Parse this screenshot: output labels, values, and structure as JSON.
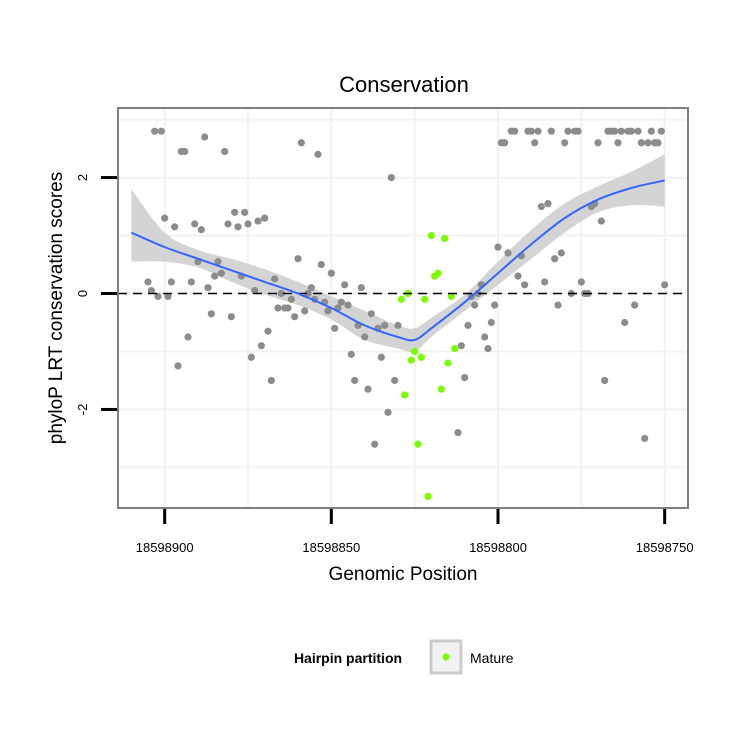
{
  "chart_data": {
    "type": "scatter",
    "title": "Conservation",
    "xlabel": "Genomic Position",
    "ylabel": "phyloP LRT conservation scores",
    "x_reversed": true,
    "xlim": [
      18598914,
      18598743
    ],
    "ylim": [
      -3.7,
      3.2
    ],
    "x_ticks": [
      18598900,
      18598850,
      18598800,
      18598750
    ],
    "x_tick_labels": [
      "18598900",
      "18598850",
      "18598800",
      "18598750"
    ],
    "y_ticks": [
      -2,
      0,
      2
    ],
    "y_tick_labels": [
      "-2",
      "0",
      "2"
    ],
    "grid": true,
    "reference_line_y": 0,
    "legend": {
      "title": "Hairpin partition",
      "entries": [
        {
          "label": "Mature",
          "color": "#7cfc00"
        }
      ],
      "position": "bottom"
    },
    "colors": {
      "gray_points": "#8c8c8c",
      "mature_points": "#7cfc00",
      "smooth_line": "#3366ff",
      "ribbon": "#cccccc",
      "panel_border": "#7f7f7f",
      "grid": "#f2f2f2"
    },
    "series": [
      {
        "points": [
          [
            18598905,
            0.2
          ],
          [
            18598904,
            0.05
          ],
          [
            18598903,
            2.8
          ],
          [
            18598902,
            -0.05
          ],
          [
            18598901,
            2.8
          ],
          [
            18598900,
            1.3
          ],
          [
            18598899,
            -0.05
          ],
          [
            18598898,
            0.2
          ],
          [
            18598897,
            1.15
          ],
          [
            18598896,
            -1.25
          ],
          [
            18598895,
            2.45
          ],
          [
            18598894,
            2.45
          ],
          [
            18598893,
            -0.75
          ],
          [
            18598892,
            0.2
          ],
          [
            18598891,
            1.2
          ],
          [
            18598890,
            0.55
          ],
          [
            18598889,
            1.1
          ],
          [
            18598888,
            2.7
          ],
          [
            18598887,
            0.1
          ],
          [
            18598886,
            -0.35
          ],
          [
            18598885,
            0.3
          ],
          [
            18598884,
            0.55
          ],
          [
            18598883,
            0.35
          ],
          [
            18598882,
            2.45
          ],
          [
            18598881,
            1.2
          ],
          [
            18598880,
            -0.4
          ],
          [
            18598879,
            1.4
          ],
          [
            18598878,
            1.15
          ],
          [
            18598877,
            0.3
          ],
          [
            18598876,
            1.4
          ],
          [
            18598875,
            1.2
          ],
          [
            18598874,
            -1.1
          ],
          [
            18598873,
            0.05
          ],
          [
            18598872,
            1.25
          ],
          [
            18598871,
            -0.9
          ],
          [
            18598870,
            1.3
          ],
          [
            18598869,
            -0.65
          ],
          [
            18598868,
            -1.5
          ],
          [
            18598867,
            0.25
          ],
          [
            18598866,
            -0.25
          ],
          [
            18598865,
            0.0
          ],
          [
            18598864,
            -0.25
          ],
          [
            18598863,
            -0.25
          ],
          [
            18598862,
            -0.1
          ],
          [
            18598861,
            -0.4
          ],
          [
            18598860,
            0.6
          ],
          [
            18598859,
            2.6
          ],
          [
            18598858,
            -0.3
          ],
          [
            18598857,
            0.0
          ],
          [
            18598856,
            0.1
          ],
          [
            18598855,
            -0.1
          ],
          [
            18598854,
            2.4
          ],
          [
            18598853,
            0.5
          ],
          [
            18598852,
            -0.15
          ],
          [
            18598851,
            -0.3
          ],
          [
            18598850,
            0.35
          ],
          [
            18598849,
            -0.6
          ],
          [
            18598848,
            -0.25
          ],
          [
            18598847,
            -0.15
          ],
          [
            18598846,
            0.15
          ],
          [
            18598845,
            -0.2
          ],
          [
            18598844,
            -1.05
          ],
          [
            18598843,
            -1.5
          ],
          [
            18598842,
            -0.55
          ],
          [
            18598841,
            0.1
          ],
          [
            18598840,
            -0.75
          ],
          [
            18598839,
            -1.65
          ],
          [
            18598838,
            -0.35
          ],
          [
            18598837,
            -2.6
          ],
          [
            18598836,
            -0.6
          ],
          [
            18598835,
            -1.1
          ],
          [
            18598834,
            -0.55
          ],
          [
            18598833,
            -2.05
          ],
          [
            18598832,
            2.0
          ],
          [
            18598831,
            -1.5
          ],
          [
            18598830,
            -0.55
          ],
          [
            18598812,
            -2.4
          ],
          [
            18598811,
            -0.9
          ],
          [
            18598810,
            -1.45
          ],
          [
            18598809,
            -0.55
          ],
          [
            18598808,
            -0.05
          ],
          [
            18598807,
            -0.2
          ],
          [
            18598806,
            0.0
          ],
          [
            18598805,
            0.15
          ],
          [
            18598804,
            -0.75
          ],
          [
            18598803,
            -0.95
          ],
          [
            18598802,
            -0.5
          ],
          [
            18598801,
            -0.2
          ],
          [
            18598800,
            0.8
          ],
          [
            18598799,
            2.6
          ],
          [
            18598798,
            2.6
          ],
          [
            18598797,
            0.7
          ],
          [
            18598796,
            2.8
          ],
          [
            18598795,
            2.8
          ],
          [
            18598794,
            0.3
          ],
          [
            18598793,
            0.65
          ],
          [
            18598792,
            0.15
          ],
          [
            18598791,
            2.8
          ],
          [
            18598790,
            2.8
          ],
          [
            18598789,
            2.6
          ],
          [
            18598788,
            2.8
          ],
          [
            18598787,
            1.5
          ],
          [
            18598786,
            0.2
          ],
          [
            18598785,
            1.55
          ],
          [
            18598784,
            2.8
          ],
          [
            18598783,
            0.6
          ],
          [
            18598782,
            -0.2
          ],
          [
            18598781,
            0.7
          ],
          [
            18598780,
            2.6
          ],
          [
            18598779,
            2.8
          ],
          [
            18598778,
            0.0
          ],
          [
            18598777,
            2.8
          ],
          [
            18598776,
            2.8
          ],
          [
            18598775,
            0.2
          ],
          [
            18598774,
            0.0
          ],
          [
            18598773,
            0.0
          ],
          [
            18598772,
            1.5
          ],
          [
            18598771,
            1.55
          ],
          [
            18598770,
            2.6
          ],
          [
            18598769,
            1.25
          ],
          [
            18598768,
            -1.5
          ],
          [
            18598767,
            2.8
          ],
          [
            18598766,
            2.8
          ],
          [
            18598765,
            2.8
          ],
          [
            18598764,
            2.6
          ],
          [
            18598763,
            2.8
          ],
          [
            18598762,
            -0.5
          ],
          [
            18598761,
            2.8
          ],
          [
            18598760,
            2.8
          ],
          [
            18598759,
            -0.2
          ],
          [
            18598758,
            2.8
          ],
          [
            18598757,
            2.6
          ],
          [
            18598756,
            -2.5
          ],
          [
            18598755,
            2.6
          ],
          [
            18598754,
            2.8
          ],
          [
            18598753,
            2.6
          ],
          [
            18598752,
            2.6
          ],
          [
            18598751,
            2.8
          ],
          [
            18598750,
            0.15
          ]
        ]
      },
      {
        "name": "Mature",
        "points": [
          [
            18598829,
            -0.1
          ],
          [
            18598828,
            -1.75
          ],
          [
            18598827,
            0.0
          ],
          [
            18598826,
            -1.15
          ],
          [
            18598825,
            -1.0
          ],
          [
            18598824,
            -2.6
          ],
          [
            18598823,
            -1.1
          ],
          [
            18598822,
            -0.1
          ],
          [
            18598821,
            -3.5
          ],
          [
            18598820,
            1.0
          ],
          [
            18598819,
            0.3
          ],
          [
            18598818,
            0.35
          ],
          [
            18598817,
            -1.65
          ],
          [
            18598816,
            0.95
          ],
          [
            18598815,
            -1.2
          ],
          [
            18598814,
            -0.05
          ],
          [
            18598813,
            -0.95
          ]
        ]
      }
    ],
    "smooth": {
      "x": [
        18598910,
        18598900,
        18598890,
        18598880,
        18598870,
        18598860,
        18598850,
        18598840,
        18598830,
        18598825,
        18598820,
        18598810,
        18598800,
        18598790,
        18598780,
        18598770,
        18598760,
        18598750
      ],
      "y": [
        1.05,
        0.8,
        0.6,
        0.4,
        0.2,
        0.0,
        -0.25,
        -0.55,
        -0.75,
        -0.8,
        -0.6,
        -0.15,
        0.35,
        0.85,
        1.3,
        1.62,
        1.82,
        1.95
      ],
      "lower": [
        0.55,
        0.55,
        0.45,
        0.2,
        -0.02,
        -0.2,
        -0.45,
        -0.8,
        -0.95,
        -1.0,
        -0.75,
        -0.3,
        0.15,
        0.6,
        1.05,
        1.4,
        1.52,
        1.5
      ],
      "upper": [
        1.8,
        1.05,
        0.75,
        0.6,
        0.42,
        0.2,
        -0.05,
        -0.3,
        -0.55,
        -0.6,
        -0.42,
        -0.02,
        0.55,
        1.1,
        1.55,
        1.85,
        2.1,
        2.4
      ]
    }
  }
}
